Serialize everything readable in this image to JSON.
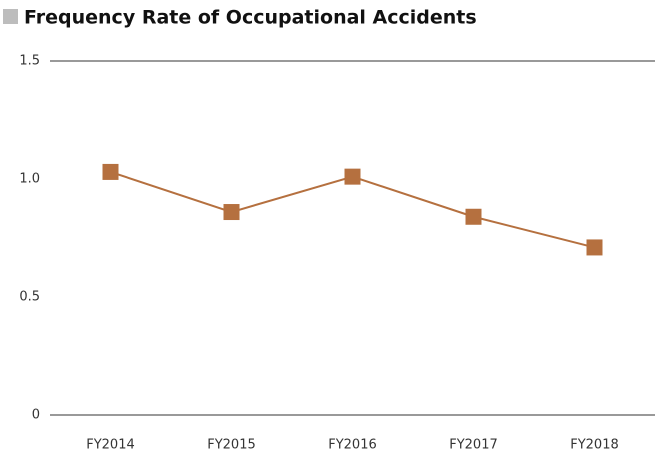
{
  "chart_data": {
    "type": "line",
    "title": "Frequency Rate of Occupational Accidents",
    "categories": [
      "FY2014",
      "FY2015",
      "FY2016",
      "FY2017",
      "FY2018"
    ],
    "values": [
      1.03,
      0.86,
      1.01,
      0.84,
      0.71
    ],
    "color": "#b5703f",
    "ylim": [
      0,
      1.5
    ],
    "yticks": [
      0,
      0.5,
      {
        "value": 1,
        "label": "1.0"
      },
      {
        "value": 1.5,
        "label": "1.5"
      }
    ],
    "grid": false
  }
}
